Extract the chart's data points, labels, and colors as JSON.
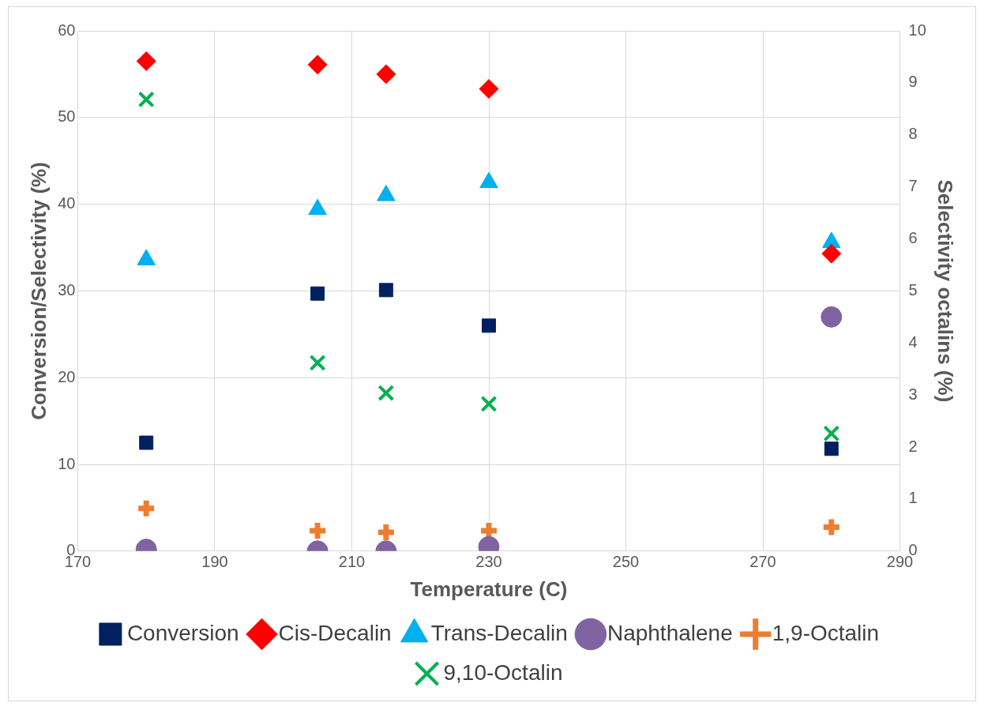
{
  "chart_data": {
    "type": "scatter",
    "xlabel": "Temperature (C)",
    "ylabel": "Conversion/Selectivity (%)",
    "y2label": "Selectivity octalins (%)",
    "xlim": [
      170,
      290
    ],
    "xticks": [
      170,
      190,
      210,
      230,
      250,
      270,
      290
    ],
    "ylim": [
      0,
      60
    ],
    "yticks": [
      0,
      10,
      20,
      30,
      40,
      50,
      60
    ],
    "y2lim": [
      0,
      10
    ],
    "y2ticks": [
      0,
      1,
      2,
      3,
      4,
      5,
      6,
      7,
      8,
      9,
      10
    ],
    "grid": true,
    "legend": "bottom",
    "x": [
      180,
      205,
      215,
      230,
      280
    ],
    "series": [
      {
        "name": "Conversion",
        "color": "#002060",
        "marker": "square",
        "values": [
          12.5,
          29.7,
          30.1,
          26.0,
          11.8
        ]
      },
      {
        "name": "Cis-Decalin",
        "color": "#ff0000",
        "marker": "diamond",
        "values": [
          56.5,
          56.1,
          55.0,
          53.3,
          34.3
        ]
      },
      {
        "name": "Trans-Decalin",
        "color": "#00b0f0",
        "marker": "triangle",
        "values": [
          33.6,
          39.4,
          41.0,
          42.5,
          35.6
        ]
      },
      {
        "name": "Naphthalene",
        "color": "#8064a2",
        "marker": "circle",
        "values": [
          0.2,
          0.0,
          0.0,
          0.5,
          27.0
        ]
      },
      {
        "name": "1,9-Octalin",
        "color": "#ed7d31",
        "marker": "cross",
        "axis": "y2",
        "values": [
          0.82,
          0.39,
          0.36,
          0.39,
          0.46
        ]
      },
      {
        "name": "9,10-Octalin",
        "color": "#00b050",
        "marker": "x",
        "axis": "y2",
        "values": [
          8.68,
          3.62,
          3.04,
          2.83,
          2.26
        ]
      }
    ]
  }
}
